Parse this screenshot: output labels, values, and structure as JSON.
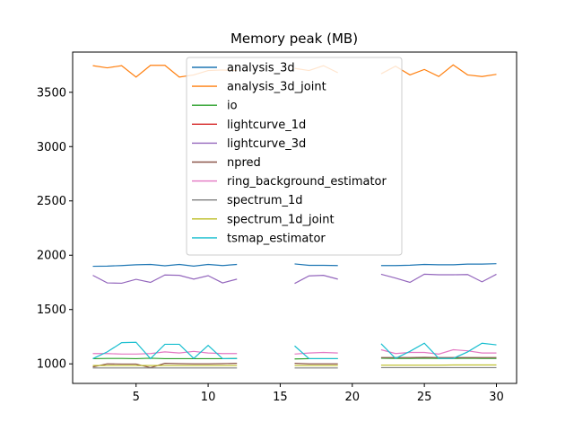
{
  "chart_data": {
    "type": "line",
    "title": "Memory peak (MB)",
    "xlabel": "",
    "ylabel": "",
    "xlim": [
      0.6,
      31.4
    ],
    "ylim": [
      820,
      3870
    ],
    "xticks": [
      5,
      10,
      15,
      20,
      25,
      30
    ],
    "yticks": [
      1000,
      1500,
      2000,
      2500,
      3000,
      3500
    ],
    "grid": false,
    "legend_position": "top-center",
    "series": [
      {
        "name": "analysis_3d",
        "color": "#1f77b4",
        "points": [
          [
            2,
            1898
          ],
          [
            3,
            1900
          ],
          [
            4,
            1905
          ],
          [
            5,
            1912
          ],
          [
            6,
            1915
          ],
          [
            7,
            1903
          ],
          [
            8,
            1915
          ],
          [
            9,
            1900
          ],
          [
            10,
            1915
          ],
          [
            11,
            1905
          ],
          [
            12,
            1915
          ],
          [
            16,
            1920
          ],
          [
            17,
            1907
          ],
          [
            18,
            1907
          ],
          [
            19,
            1905
          ],
          [
            22,
            1905
          ],
          [
            23,
            1905
          ],
          [
            24,
            1908
          ],
          [
            25,
            1915
          ],
          [
            26,
            1912
          ],
          [
            27,
            1912
          ],
          [
            28,
            1918
          ],
          [
            29,
            1918
          ],
          [
            30,
            1922
          ]
        ]
      },
      {
        "name": "analysis_3d_joint",
        "color": "#ff7f0e",
        "points": [
          [
            2,
            3745
          ],
          [
            3,
            3725
          ],
          [
            4,
            3745
          ],
          [
            5,
            3640
          ],
          [
            6,
            3748
          ],
          [
            7,
            3748
          ],
          [
            8,
            3640
          ],
          [
            9,
            3660
          ],
          [
            10,
            3700
          ],
          [
            11,
            3705
          ],
          [
            12,
            3700
          ],
          [
            16,
            3720
          ],
          [
            17,
            3700
          ],
          [
            18,
            3745
          ],
          [
            19,
            3680
          ],
          [
            22,
            3670
          ],
          [
            23,
            3740
          ],
          [
            24,
            3660
          ],
          [
            25,
            3710
          ],
          [
            26,
            3645
          ],
          [
            27,
            3752
          ],
          [
            28,
            3660
          ],
          [
            29,
            3645
          ],
          [
            30,
            3665
          ]
        ]
      },
      {
        "name": "io",
        "color": "#2ca02c",
        "points": [
          [
            2,
            1048
          ],
          [
            3,
            1050
          ],
          [
            4,
            1050
          ],
          [
            5,
            1048
          ],
          [
            6,
            1052
          ],
          [
            7,
            1048
          ],
          [
            8,
            1048
          ],
          [
            9,
            1048
          ],
          [
            10,
            1048
          ],
          [
            11,
            1048
          ],
          [
            12,
            1050
          ],
          [
            16,
            1045
          ],
          [
            17,
            1048
          ],
          [
            18,
            1048
          ],
          [
            19,
            1048
          ],
          [
            22,
            1052
          ],
          [
            23,
            1050
          ],
          [
            24,
            1050
          ],
          [
            25,
            1052
          ],
          [
            26,
            1050
          ],
          [
            27,
            1050
          ],
          [
            28,
            1052
          ],
          [
            29,
            1050
          ],
          [
            30,
            1050
          ]
        ]
      },
      {
        "name": "lightcurve_1d",
        "color": "#d62728",
        "points": []
      },
      {
        "name": "lightcurve_3d",
        "color": "#9467bd",
        "points": [
          [
            2,
            1815
          ],
          [
            3,
            1745
          ],
          [
            4,
            1742
          ],
          [
            5,
            1778
          ],
          [
            6,
            1750
          ],
          [
            7,
            1818
          ],
          [
            8,
            1815
          ],
          [
            9,
            1780
          ],
          [
            10,
            1812
          ],
          [
            11,
            1745
          ],
          [
            12,
            1780
          ],
          [
            16,
            1740
          ],
          [
            17,
            1810
          ],
          [
            18,
            1815
          ],
          [
            19,
            1780
          ],
          [
            22,
            1825
          ],
          [
            23,
            1790
          ],
          [
            24,
            1750
          ],
          [
            25,
            1825
          ],
          [
            26,
            1820
          ],
          [
            27,
            1820
          ],
          [
            28,
            1822
          ],
          [
            29,
            1755
          ],
          [
            30,
            1825
          ]
        ]
      },
      {
        "name": "npred",
        "color": "#8c564b",
        "points": [
          [
            2,
            972
          ],
          [
            3,
            1000
          ],
          [
            4,
            998
          ],
          [
            5,
            998
          ],
          [
            6,
            965
          ],
          [
            7,
            1005
          ],
          [
            8,
            1002
          ],
          [
            9,
            1000
          ],
          [
            10,
            1000
          ],
          [
            11,
            1002
          ],
          [
            12,
            1005
          ],
          [
            16,
            1005
          ],
          [
            17,
            1000
          ],
          [
            18,
            1000
          ],
          [
            19,
            1000
          ],
          [
            22,
            1058
          ],
          [
            23,
            1058
          ],
          [
            24,
            1058
          ],
          [
            25,
            1060
          ],
          [
            26,
            1058
          ],
          [
            27,
            1058
          ],
          [
            28,
            1058
          ],
          [
            29,
            1058
          ],
          [
            30,
            1058
          ]
        ]
      },
      {
        "name": "ring_background_estimator",
        "color": "#e377c2",
        "points": [
          [
            2,
            1095
          ],
          [
            3,
            1095
          ],
          [
            4,
            1090
          ],
          [
            5,
            1090
          ],
          [
            6,
            1095
          ],
          [
            7,
            1110
          ],
          [
            8,
            1100
          ],
          [
            9,
            1115
          ],
          [
            10,
            1100
          ],
          [
            11,
            1095
          ],
          [
            12,
            1095
          ],
          [
            16,
            1090
          ],
          [
            17,
            1100
          ],
          [
            18,
            1105
          ],
          [
            19,
            1100
          ],
          [
            22,
            1130
          ],
          [
            23,
            1095
          ],
          [
            24,
            1105
          ],
          [
            25,
            1105
          ],
          [
            26,
            1090
          ],
          [
            27,
            1130
          ],
          [
            28,
            1120
          ],
          [
            29,
            1100
          ],
          [
            30,
            1100
          ]
        ]
      },
      {
        "name": "spectrum_1d",
        "color": "#7f7f7f",
        "points": [
          [
            2,
            962
          ],
          [
            3,
            962
          ],
          [
            4,
            962
          ],
          [
            5,
            962
          ],
          [
            6,
            962
          ],
          [
            7,
            962
          ],
          [
            8,
            962
          ],
          [
            9,
            962
          ],
          [
            10,
            962
          ],
          [
            11,
            962
          ],
          [
            12,
            962
          ],
          [
            16,
            962
          ],
          [
            17,
            962
          ],
          [
            18,
            962
          ],
          [
            19,
            962
          ],
          [
            22,
            965
          ],
          [
            23,
            965
          ],
          [
            24,
            965
          ],
          [
            25,
            965
          ],
          [
            26,
            965
          ],
          [
            27,
            965
          ],
          [
            28,
            965
          ],
          [
            29,
            965
          ],
          [
            30,
            965
          ]
        ]
      },
      {
        "name": "spectrum_1d_joint",
        "color": "#bcbd22",
        "points": [
          [
            2,
            985
          ],
          [
            3,
            985
          ],
          [
            4,
            985
          ],
          [
            5,
            985
          ],
          [
            6,
            985
          ],
          [
            7,
            985
          ],
          [
            8,
            985
          ],
          [
            9,
            985
          ],
          [
            10,
            985
          ],
          [
            11,
            985
          ],
          [
            12,
            985
          ],
          [
            16,
            985
          ],
          [
            17,
            985
          ],
          [
            18,
            985
          ],
          [
            19,
            985
          ],
          [
            22,
            988
          ],
          [
            23,
            988
          ],
          [
            24,
            988
          ],
          [
            25,
            988
          ],
          [
            26,
            988
          ],
          [
            27,
            990
          ],
          [
            28,
            990
          ],
          [
            29,
            990
          ],
          [
            30,
            990
          ]
        ]
      },
      {
        "name": "tsmap_estimator",
        "color": "#17becf",
        "points": [
          [
            2,
            1048
          ],
          [
            3,
            1110
          ],
          [
            4,
            1195
          ],
          [
            5,
            1198
          ],
          [
            6,
            1048
          ],
          [
            7,
            1180
          ],
          [
            8,
            1180
          ],
          [
            9,
            1050
          ],
          [
            10,
            1170
          ],
          [
            11,
            1048
          ],
          [
            12,
            1048
          ],
          [
            16,
            1165
          ],
          [
            17,
            1048
          ],
          [
            18,
            1048
          ],
          [
            19,
            1048
          ],
          [
            22,
            1185
          ],
          [
            23,
            1050
          ],
          [
            24,
            1115
          ],
          [
            25,
            1190
          ],
          [
            26,
            1050
          ],
          [
            27,
            1050
          ],
          [
            28,
            1110
          ],
          [
            29,
            1190
          ],
          [
            30,
            1175
          ]
        ]
      }
    ]
  }
}
